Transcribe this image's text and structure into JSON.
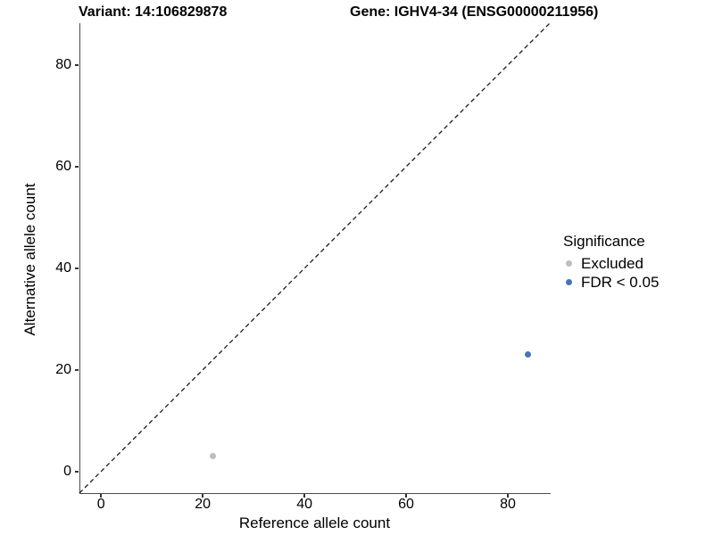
{
  "header": {
    "variant_title": "Variant: 14:106829878",
    "gene_title": "Gene: IGHV4-34 (ENSG00000211956)"
  },
  "chart_data": {
    "type": "scatter",
    "xlabel": "Reference allele count",
    "ylabel": "Alternative allele count",
    "xlim": [
      -4.25,
      88.25
    ],
    "ylim": [
      -4.25,
      88.25
    ],
    "x_major_ticks": [
      0,
      20,
      40,
      60,
      80
    ],
    "y_major_ticks": [
      0,
      20,
      40,
      60,
      80
    ],
    "x_minor_ticks": [
      10,
      30,
      50,
      70
    ],
    "y_minor_ticks": [
      10,
      30,
      50,
      70
    ],
    "grid": "major-and-minor",
    "reference_line": {
      "type": "identity",
      "style": "dashed",
      "color": "#1a1a1a"
    },
    "series": [
      {
        "name": "Excluded",
        "color": "#bdbdbd",
        "points": [
          {
            "x": 22,
            "y": 3
          }
        ]
      },
      {
        "name": "FDR < 0.05",
        "color": "#4575b4",
        "points": [
          {
            "x": 84,
            "y": 23
          }
        ]
      }
    ],
    "legend": {
      "title": "Significance",
      "position": "right"
    }
  },
  "colors": {
    "background": "#ffffff",
    "axis_line": "#4d4d4d",
    "tick_mark": "#333333",
    "grid_major": "#e3e3e3",
    "grid_minor": "#f2f2f2",
    "excluded_point": "#bdbdbd",
    "significant_point": "#4575b4",
    "text": "#000000"
  }
}
